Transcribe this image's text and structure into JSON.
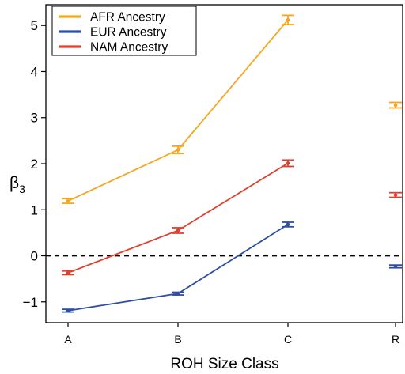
{
  "chart_data": {
    "type": "line",
    "xlabel": "ROH Size Class",
    "ylabel_base": "β",
    "ylabel_sub": "3",
    "categories": [
      "A",
      "B",
      "C",
      "R"
    ],
    "connected_categories": [
      "A",
      "B",
      "C"
    ],
    "ylim": [
      -1.45,
      5.45
    ],
    "y_ticks": [
      -1,
      0,
      1,
      2,
      3,
      4,
      5
    ],
    "y_tick_labels": [
      "−1",
      "0",
      "1",
      "2",
      "3",
      "4",
      "5"
    ],
    "reference_line": {
      "y": 0,
      "style": "dashed"
    },
    "legend_position": "top-left",
    "series": [
      {
        "name": "AFR Ancestry",
        "color": "#F5A623",
        "values": [
          1.19,
          2.3,
          5.12,
          3.27
        ],
        "errors": [
          0.05,
          0.08,
          0.1,
          0.06
        ]
      },
      {
        "name": "EUR Ancestry",
        "color": "#2D4FA3",
        "values": [
          -1.19,
          -0.82,
          0.68,
          -0.23
        ],
        "errors": [
          0.03,
          0.03,
          0.05,
          0.03
        ]
      },
      {
        "name": "NAM Ancestry",
        "color": "#E0402E",
        "values": [
          -0.37,
          0.55,
          2.01,
          1.32
        ],
        "errors": [
          0.04,
          0.06,
          0.07,
          0.05
        ]
      }
    ]
  }
}
